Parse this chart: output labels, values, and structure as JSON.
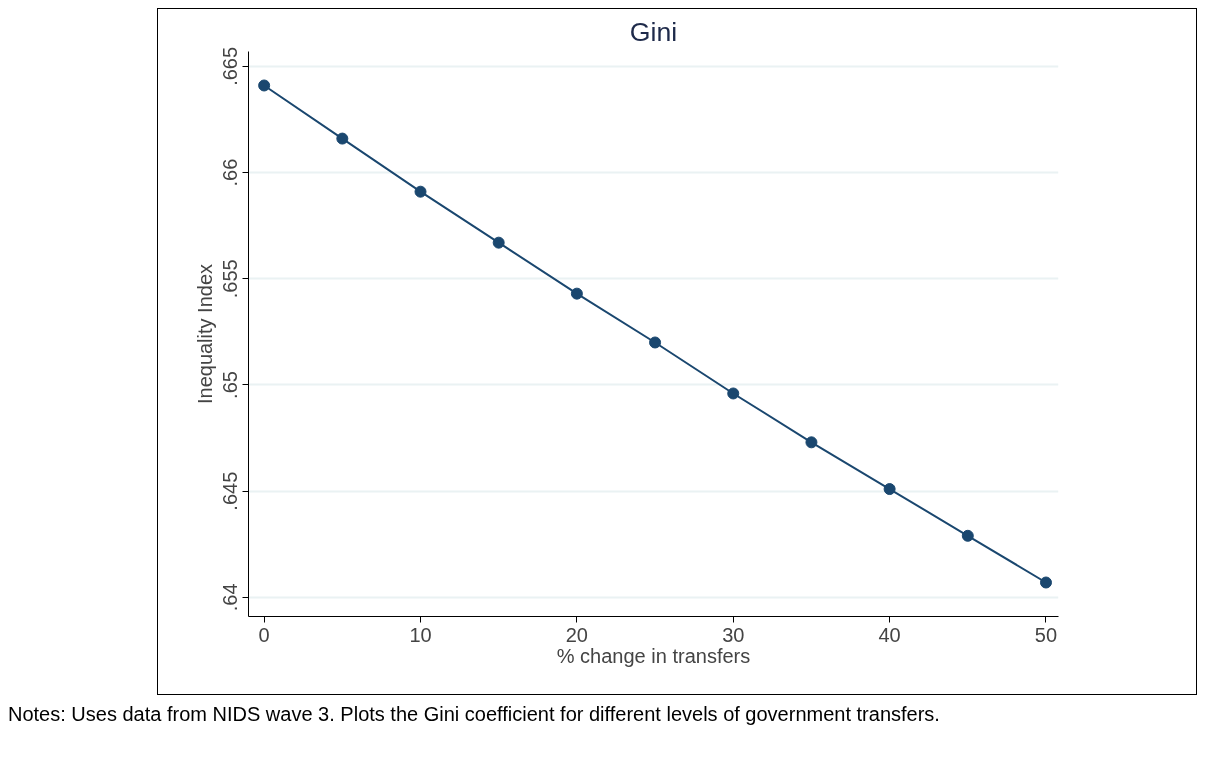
{
  "chart_data": {
    "type": "line",
    "title": "Gini",
    "xlabel": "% change in transfers",
    "ylabel": "Inequality Index",
    "x": [
      0,
      5,
      10,
      15,
      20,
      25,
      30,
      35,
      40,
      45,
      50
    ],
    "series": [
      {
        "color": "#1a476f",
        "values": [
          0.6641,
          0.6616,
          0.6591,
          0.6567,
          0.6543,
          0.652,
          0.6496,
          0.6473,
          0.6451,
          0.6429,
          0.6407
        ]
      }
    ],
    "marker": "circle",
    "line_style": "solid",
    "grid": "y",
    "xlim": [
      -1,
      50.8
    ],
    "xticks": [
      0,
      10,
      20,
      30,
      40,
      50
    ],
    "ylim": [
      0.6391,
      0.6657
    ],
    "yticks": [
      {
        "value": 0.64,
        "label": ".64"
      },
      {
        "value": 0.645,
        "label": ".645"
      },
      {
        "value": 0.65,
        "label": ".65"
      },
      {
        "value": 0.655,
        "label": ".655"
      },
      {
        "value": 0.66,
        "label": ".66"
      },
      {
        "value": 0.665,
        "label": ".665"
      }
    ],
    "annotations": [
      "Notes: Uses data from NIDS wave 3. Plots the Gini coefficient for different levels of government transfers."
    ]
  }
}
